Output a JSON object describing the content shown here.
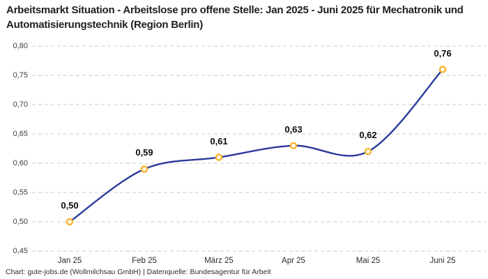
{
  "chart_data": {
    "type": "line",
    "title": "Arbeitsmarkt Situation - Arbeitslose pro offene Stelle: Jan 2025 - Juni 2025 für Mechatronik und Automatisierungstechnik (Region Berlin)",
    "caption": "Chart: gute-jobs.de (Wollmilchsau GmbH) | Datenquelle: Bundesagentur für Arbeit",
    "categories": [
      "Jan 25",
      "Feb 25",
      "März 25",
      "Apr 25",
      "Mai 25",
      "Juni 25"
    ],
    "values": [
      0.5,
      0.59,
      0.61,
      0.63,
      0.62,
      0.76
    ],
    "value_labels": [
      "0,50",
      "0,59",
      "0,61",
      "0,63",
      "0,62",
      "0,76"
    ],
    "xlabel": "",
    "ylabel": "",
    "ylim": [
      0.45,
      0.8
    ],
    "ytick_step": 0.05,
    "ytick_labels": [
      "0,45",
      "0,50",
      "0,55",
      "0,60",
      "0,65",
      "0,70",
      "0,75",
      "0,80"
    ],
    "grid": "horizontal-dashed",
    "legend": "none",
    "line_shape": "smooth-spline",
    "colors": {
      "line": "#2B3A9B",
      "marker_ring": "#F7B32B",
      "marker_fill": "#FFFFFF",
      "grid": "#CBCBCB",
      "background": "#FFFFFF",
      "title_text": "#1F1F1F",
      "data_label_text": "#0C0C0C",
      "tick_text": "#3D3D3D"
    }
  }
}
